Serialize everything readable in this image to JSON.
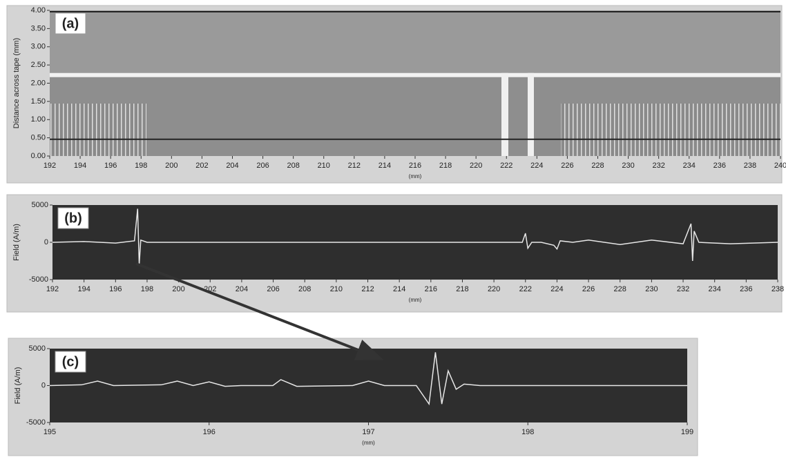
{
  "chart_data": [
    {
      "type": "image",
      "label": "(a)",
      "ylabel": "Distance across tape (mm)",
      "xlabel": "(mm)",
      "xlim": [
        192,
        240
      ],
      "xticks": [
        192,
        194,
        196,
        198,
        200,
        202,
        204,
        206,
        208,
        210,
        212,
        214,
        216,
        218,
        220,
        222,
        224,
        226,
        228,
        230,
        232,
        234,
        236,
        238,
        240
      ],
      "ylim": [
        0,
        4
      ],
      "yticks": [
        {
          "value": 0,
          "label": "0.00"
        },
        {
          "value": 0.5,
          "label": "0.50"
        },
        {
          "value": 1,
          "label": "1.00"
        },
        {
          "value": 1.5,
          "label": "1.50"
        },
        {
          "value": 2,
          "label": "2.00"
        },
        {
          "value": 2.5,
          "label": "2.50"
        },
        {
          "value": 3,
          "label": "3.00"
        },
        {
          "value": 3.5,
          "label": "3.50"
        },
        {
          "value": 4,
          "label": "4.00"
        }
      ]
    },
    {
      "type": "line",
      "label": "(b)",
      "ylabel": "Field (A/m)",
      "xlabel": "(mm)",
      "color": "#e8e8e8",
      "xlim": [
        192,
        238
      ],
      "xticks": [
        192,
        194,
        196,
        198,
        200,
        202,
        204,
        206,
        208,
        210,
        212,
        214,
        216,
        218,
        220,
        222,
        224,
        226,
        228,
        230,
        232,
        234,
        236,
        238
      ],
      "ylim": [
        -5000,
        5000
      ],
      "yticks": [
        -5000,
        0,
        5000
      ],
      "x": [
        192,
        194,
        196,
        197.2,
        197.4,
        197.5,
        197.6,
        198,
        200,
        205,
        210,
        215,
        220,
        221.8,
        222,
        222.15,
        222.4,
        223,
        223.8,
        224,
        224.2,
        225,
        226,
        228,
        230,
        232,
        232.5,
        232.6,
        232.7,
        233,
        235,
        238
      ],
      "values": [
        0,
        100,
        -100,
        200,
        4500,
        -3000,
        300,
        0,
        0,
        0,
        0,
        0,
        0,
        0,
        1200,
        -800,
        0,
        0,
        -400,
        -900,
        200,
        0,
        300,
        -300,
        300,
        -200,
        2500,
        -2500,
        1500,
        0,
        -200,
        0
      ]
    },
    {
      "type": "line",
      "label": "(c)",
      "ylabel": "Field (A/m)",
      "xlabel": "(mm)",
      "color": "#e8e8e8",
      "xlim": [
        195,
        199
      ],
      "xticks": [
        195,
        196,
        197,
        198,
        199
      ],
      "ylim": [
        -5000,
        5000
      ],
      "yticks": [
        -5000,
        0,
        5000
      ],
      "x": [
        195,
        195.2,
        195.3,
        195.4,
        195.7,
        195.8,
        195.9,
        196,
        196.1,
        196.2,
        196.4,
        196.45,
        196.55,
        196.9,
        197,
        197.1,
        197.3,
        197.38,
        197.42,
        197.46,
        197.5,
        197.55,
        197.6,
        197.7,
        198,
        198.5,
        199
      ],
      "values": [
        0,
        100,
        600,
        0,
        100,
        600,
        0,
        500,
        -100,
        0,
        0,
        800,
        -100,
        0,
        600,
        0,
        0,
        -2500,
        4500,
        -2500,
        2000,
        -500,
        200,
        0,
        0,
        0,
        0
      ]
    }
  ]
}
